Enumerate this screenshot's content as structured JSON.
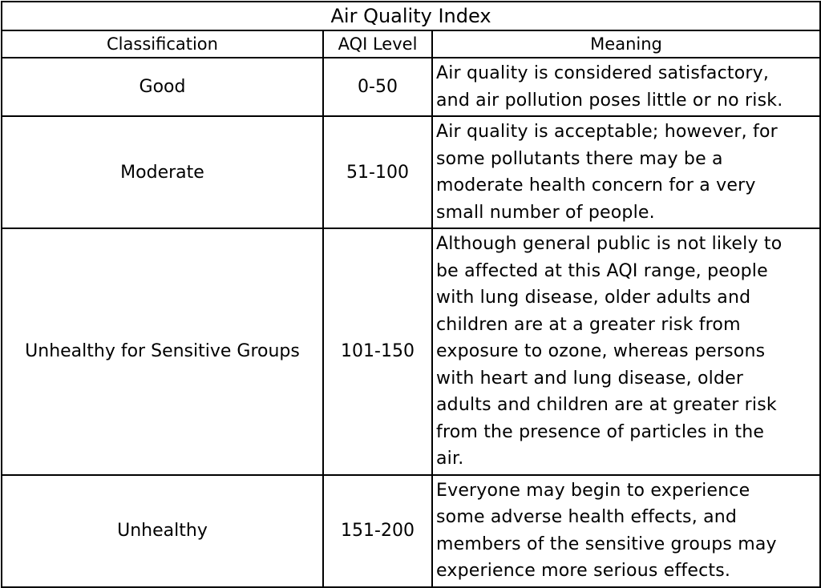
{
  "table": {
    "title": "Air Quality Index",
    "headers": {
      "classification": "Classification",
      "level": "AQI Level",
      "meaning": "Meaning"
    },
    "rows": [
      {
        "classification": "Good",
        "level": "0-50",
        "meaning_lines": [
          "Air quality is considered satisfactory,",
          "and air pollution poses little or no risk."
        ]
      },
      {
        "classification": "Moderate",
        "level": "51-100",
        "meaning_lines": [
          "Air quality is acceptable; however, for",
          "some pollutants there may be a",
          "moderate health concern for a very",
          "small number of people."
        ]
      },
      {
        "classification": "Unhealthy for Sensitive Groups",
        "level": "101-150",
        "meaning_lines": [
          "Although general public is not likely to",
          "be affected at this AQI range, people",
          "with lung disease, older adults and",
          "children are at a greater risk from",
          "exposure to ozone, whereas persons",
          "with heart and lung disease, older",
          "adults and children are at greater risk",
          "from the presence of particles in the",
          "air."
        ]
      },
      {
        "classification": "Unhealthy",
        "level": "151-200",
        "meaning_lines": [
          "Everyone may begin to experience",
          "some adverse health effects, and",
          "members of the sensitive groups may",
          "experience more serious effects."
        ]
      }
    ]
  }
}
